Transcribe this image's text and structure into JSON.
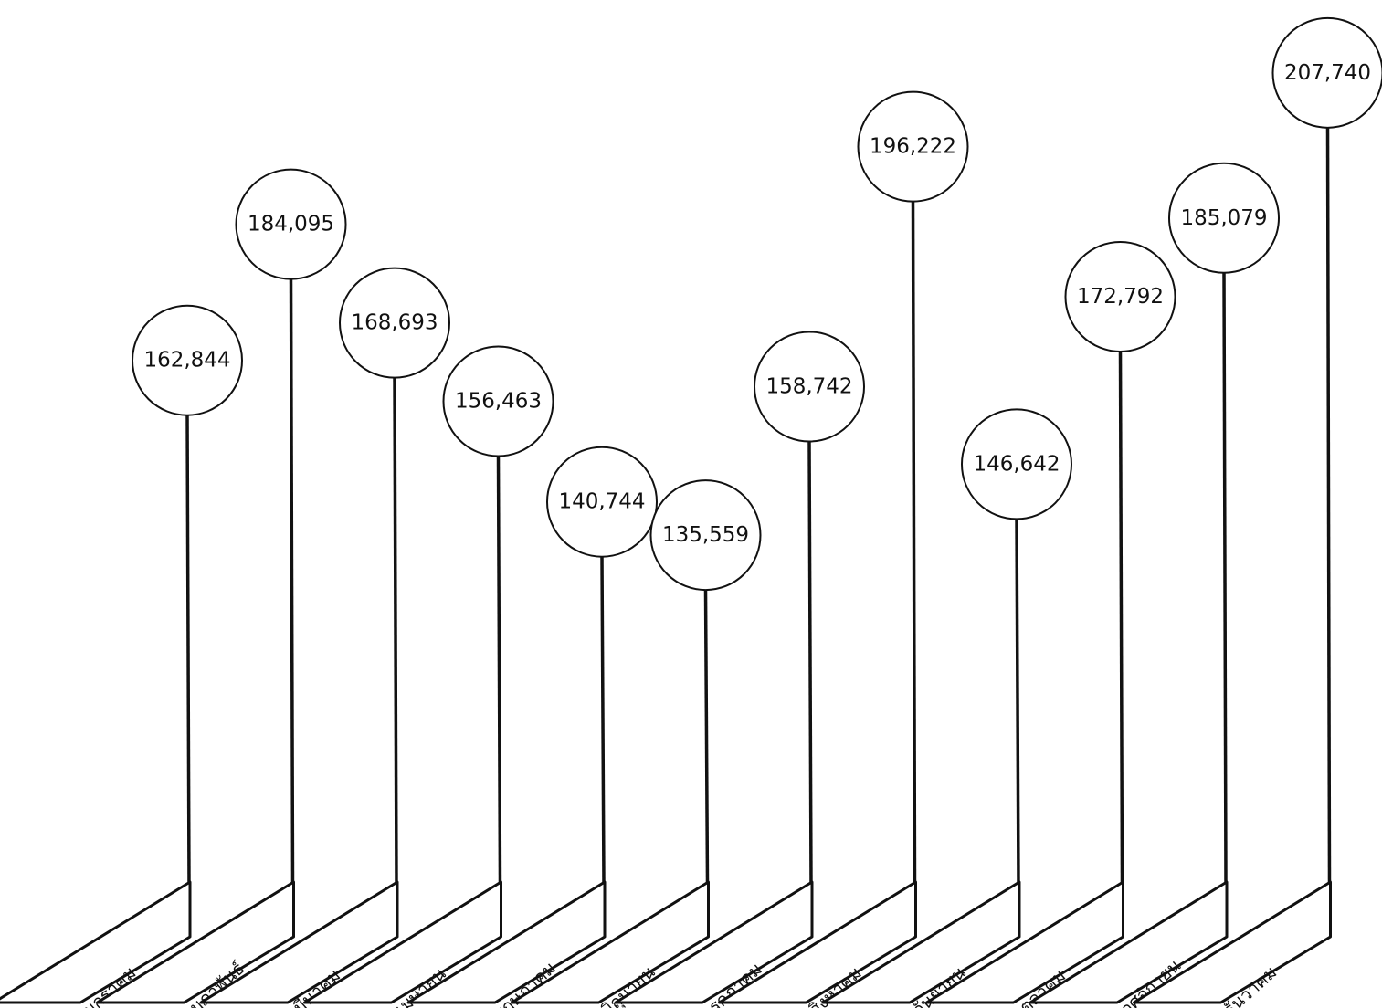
{
  "chart_data": {
    "type": "bar",
    "title": "",
    "xlabel": "",
    "ylabel": "",
    "categories": [
      "มกราคม",
      "กุมภาพันธ์",
      "มีนาคม",
      "เมษายน",
      "พฤษภาคม",
      "มิถุนายน",
      "กรกฎาคม",
      "สิงหาคม",
      "กันยายน",
      "ตุลาคม",
      "พฤศจิกายน",
      "ธันวาคม"
    ],
    "values": [
      162844,
      184095,
      168693,
      156463,
      140744,
      135559,
      158742,
      196222,
      146642,
      172792,
      185079,
      207740
    ],
    "value_labels": [
      "162,844",
      "184,095",
      "168,693",
      "156,463",
      "140,744",
      "135,559",
      "158,742",
      "196,222",
      "146,642",
      "172,792",
      "185,079",
      "207,740"
    ],
    "grid": false,
    "legend": "none"
  }
}
